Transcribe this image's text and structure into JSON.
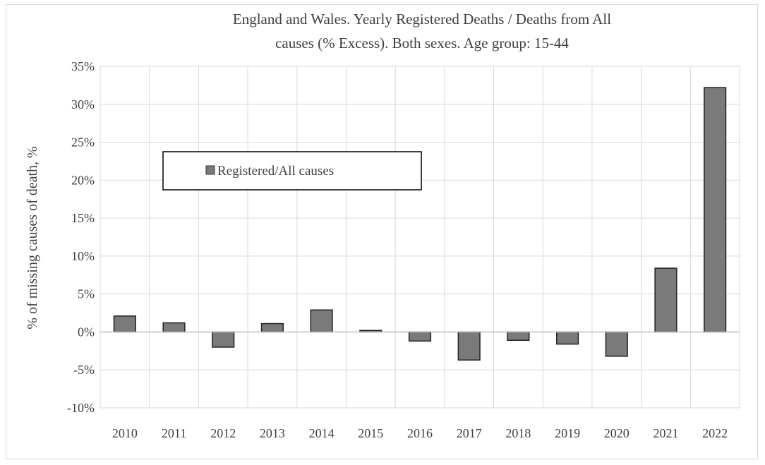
{
  "chart_data": {
    "type": "bar",
    "title_lines": [
      "England and Wales. Yearly Registered Deaths / Deaths from All",
      "causes (% Excess). Both sexes. Age group: 15-44"
    ],
    "ylabel": "% of missing causes of death, %",
    "xlabel": "",
    "categories": [
      "2010",
      "2011",
      "2012",
      "2013",
      "2014",
      "2015",
      "2016",
      "2017",
      "2018",
      "2019",
      "2020",
      "2021",
      "2022"
    ],
    "series": [
      {
        "name": "Registered/All causes",
        "color": "#7a7a7a",
        "values": [
          2.1,
          1.2,
          -2.0,
          1.1,
          2.9,
          0.2,
          -1.2,
          -3.7,
          -1.1,
          -1.6,
          -3.2,
          8.4,
          32.2
        ]
      }
    ],
    "ylim": [
      -10,
      35
    ],
    "yticks": [
      -10,
      -5,
      0,
      5,
      10,
      15,
      20,
      25,
      30,
      35
    ],
    "ytick_labels": [
      "-10%",
      "-5%",
      "0%",
      "5%",
      "10%",
      "15%",
      "20%",
      "25%",
      "30%",
      "35%"
    ],
    "grid": true,
    "legend_position": "upper-left"
  }
}
